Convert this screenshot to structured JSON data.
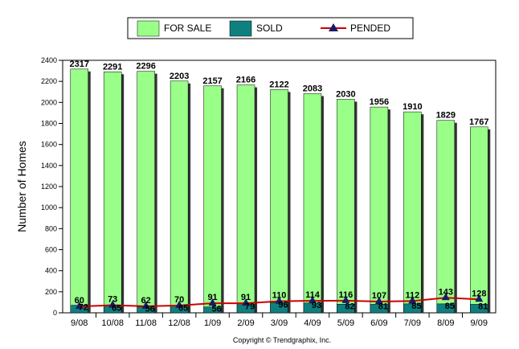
{
  "chart_data": {
    "type": "bar",
    "categories": [
      "9/08",
      "10/08",
      "11/08",
      "12/08",
      "1/09",
      "2/09",
      "3/09",
      "4/09",
      "5/09",
      "6/09",
      "7/09",
      "8/09",
      "9/09"
    ],
    "series": [
      {
        "name": "FOR SALE",
        "type": "bar",
        "color": "#99ff88",
        "values": [
          2317,
          2291,
          2296,
          2203,
          2157,
          2166,
          2122,
          2083,
          2030,
          1956,
          1910,
          1829,
          1767
        ]
      },
      {
        "name": "SOLD",
        "type": "bar",
        "color": "#0f8080",
        "values": [
          72,
          65,
          56,
          65,
          56,
          79,
          96,
          93,
          82,
          81,
          85,
          85,
          81
        ]
      },
      {
        "name": "PENDED",
        "type": "line",
        "color": "#cc0000",
        "marker_color": "#1a1a66",
        "values": [
          60,
          73,
          62,
          70,
          91,
          91,
          110,
          114,
          116,
          107,
          112,
          143,
          128
        ]
      }
    ],
    "ylabel": "Number of Homes",
    "ylim": [
      0,
      2400
    ],
    "yticks": [
      0,
      200,
      400,
      600,
      800,
      1000,
      1200,
      1400,
      1600,
      1800,
      2000,
      2200,
      2400
    ],
    "legend_position": "top",
    "grid": false
  },
  "footer": {
    "copyright": "Copyright © Trendgraphix, Inc."
  }
}
